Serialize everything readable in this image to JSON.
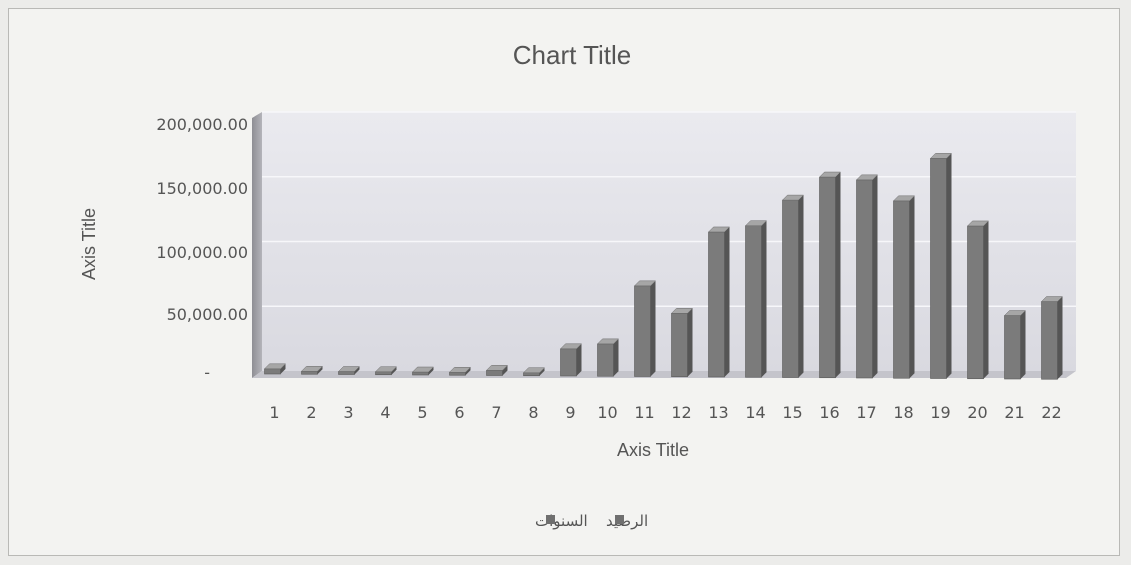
{
  "chart_data": {
    "type": "bar",
    "title": "Chart Title",
    "xlabel": "Axis Title",
    "ylabel": "Axis Title",
    "categories": [
      "1",
      "2",
      "3",
      "4",
      "5",
      "6",
      "7",
      "8",
      "9",
      "10",
      "11",
      "12",
      "13",
      "14",
      "15",
      "16",
      "17",
      "18",
      "19",
      "20",
      "21",
      "22"
    ],
    "series": [
      {
        "values": [
          4000,
          1500,
          2000,
          1500,
          1000,
          1500,
          4000,
          1000,
          21000,
          25000,
          70000,
          49000,
          112000,
          117000,
          137000,
          155000,
          153000,
          137000,
          170000,
          118000,
          49000,
          60000
        ]
      }
    ],
    "ylim": [
      0,
      200000
    ],
    "y_ticks": [
      "200,000.00",
      "150,000.00",
      "100,000.00",
      "50,000.00",
      "-"
    ],
    "grid": true,
    "legend_position": "bottom",
    "legend": [
      "السنوات",
      "الرصيد"
    ],
    "colors": {
      "bar_face": "#7b7b7b",
      "bar_top": "#a6a6a6",
      "bar_side": "#555555",
      "plot_back": "#e4e4ea",
      "plot_floor": "#cfcfd6",
      "plot_wall": "#9a9aa0"
    }
  }
}
